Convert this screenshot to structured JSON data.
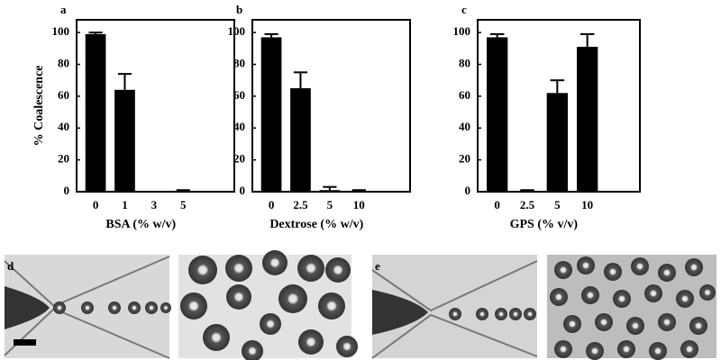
{
  "chart_data": [
    {
      "type": "bar",
      "title": "a",
      "ylabel": "% Coalescence",
      "xlabel": "BSA (% w/v)",
      "categories": [
        "0",
        "1",
        "3",
        "5",
        null,
        null
      ],
      "values": [
        99,
        64,
        0,
        0,
        null,
        null
      ],
      "errors": [
        1,
        10,
        0,
        1,
        null,
        null
      ],
      "color": "#000000",
      "ylim": [
        0,
        108
      ],
      "yticks": [
        0,
        20,
        40,
        60,
        80,
        100
      ],
      "grid": false
    },
    {
      "type": "bar",
      "title": "b",
      "xlabel": "Dextrose (% w/v)",
      "categories": [
        "0",
        "2.5",
        "5",
        "10",
        null,
        null
      ],
      "values": [
        97,
        65,
        1,
        0,
        null,
        null
      ],
      "errors": [
        2,
        10,
        2,
        1,
        null,
        null
      ],
      "color": "#000000",
      "ylim": [
        0,
        108
      ],
      "yticks": [
        0,
        20,
        40,
        60,
        80,
        100
      ],
      "grid": false
    },
    {
      "type": "bar",
      "title": "c",
      "xlabel": "GPS (% v/v)",
      "categories": [
        "0",
        "2.5",
        "5",
        "10",
        null,
        null
      ],
      "values": [
        97,
        0,
        62,
        91,
        null,
        null
      ],
      "errors": [
        2,
        1,
        8,
        8,
        null,
        null
      ],
      "color": "#000000",
      "ylim": [
        0,
        108
      ],
      "yticks": [
        0,
        20,
        40,
        60,
        80,
        100
      ],
      "grid": false
    }
  ],
  "image_panels": [
    {
      "label": "d"
    },
    {
      "label": "e"
    }
  ]
}
